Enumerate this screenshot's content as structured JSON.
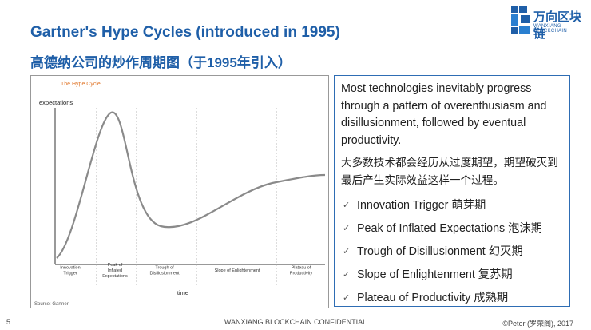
{
  "header": {
    "title": "Gartner's Hype Cycles (introduced in 1995)",
    "subtitle": "高德纳公司的炒作周期图（于1995年引入）",
    "logo": {
      "name": "万向区块链",
      "tagline": "WANXIANG BLOCKCHAIN"
    }
  },
  "figure": {
    "title": "The Hype Cycle",
    "y_label": "expectations",
    "x_label": "time",
    "source": "Source: Gartner",
    "phases": [
      [
        "Innovation",
        "Trigger"
      ],
      [
        "Peak of",
        "Inflated",
        "Expectations"
      ],
      [
        "Trough of",
        "Disillusionment"
      ],
      [
        "Slope of Enlightenment"
      ],
      [
        "Plateau of",
        "Productivity"
      ]
    ]
  },
  "panel": {
    "intro_en": "Most technologies inevitably progress through a pattern of overenthusiasm and disillusionment, followed by eventual productivity.",
    "intro_zh": "大多数技术都会经历从过度期望，期望破灭到最后产生实际效益这样一个过程。",
    "items": [
      "Innovation Trigger 萌芽期",
      "Peak of Inflated Expectations 泡沫期",
      "Trough of Disillusionment 幻灭期",
      "Slope of Enlightenment 复苏期",
      "Plateau of Productivity 成熟期"
    ]
  },
  "footer": {
    "page": "5",
    "center": "WANXIANG BLOCKCHAIN CONFIDENTIAL",
    "credit": "©Peter (罗荣阁), 2017"
  }
}
